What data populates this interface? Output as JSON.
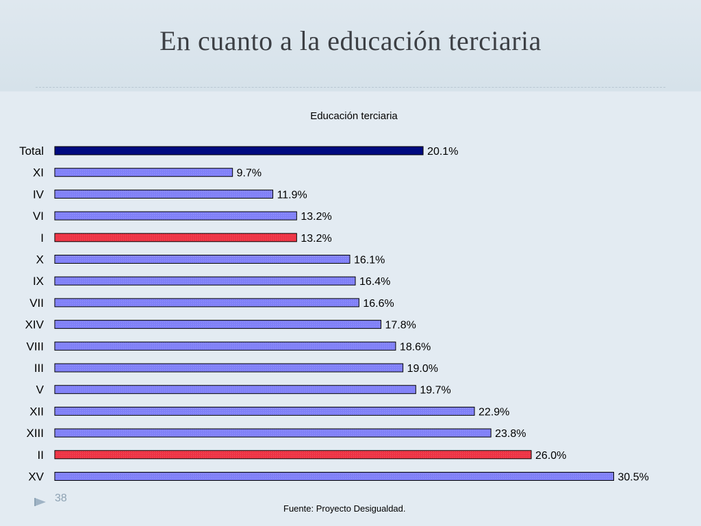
{
  "slide": {
    "title": "En cuanto a la educación terciaria",
    "page_number": "38",
    "source": "Fuente: Proyecto Desigualdad."
  },
  "colors": {
    "total_bar": "#000a80",
    "default_bar": "#8080f8",
    "highlight_bar": "#ee3344"
  },
  "chart_data": {
    "type": "bar",
    "orientation": "horizontal",
    "title": "Educación terciaria",
    "categories": [
      "Total",
      "XI",
      "IV",
      "VI",
      "I",
      "X",
      "IX",
      "VII",
      "XIV",
      "VIII",
      "III",
      "V",
      "XII",
      "XIII",
      "II",
      "XV"
    ],
    "values": [
      20.1,
      9.7,
      11.9,
      13.2,
      13.2,
      16.1,
      16.4,
      16.6,
      17.8,
      18.6,
      19.0,
      19.7,
      22.9,
      23.8,
      26.0,
      30.5
    ],
    "data_labels": [
      "20.1%",
      "9.7%",
      "11.9%",
      "13.2%",
      "13.2%",
      "16.1%",
      "16.4%",
      "16.6%",
      "17.8%",
      "18.6%",
      "19.0%",
      "19.7%",
      "22.9%",
      "23.8%",
      "26.0%",
      "30.5%"
    ],
    "bar_styles": [
      "total",
      "default",
      "default",
      "default",
      "highlight",
      "default",
      "default",
      "default",
      "default",
      "default",
      "default",
      "default",
      "default",
      "default",
      "highlight",
      "default"
    ],
    "xlabel": "",
    "ylabel": "",
    "xlim": [
      0,
      35
    ],
    "grid": false,
    "legend": "none"
  }
}
